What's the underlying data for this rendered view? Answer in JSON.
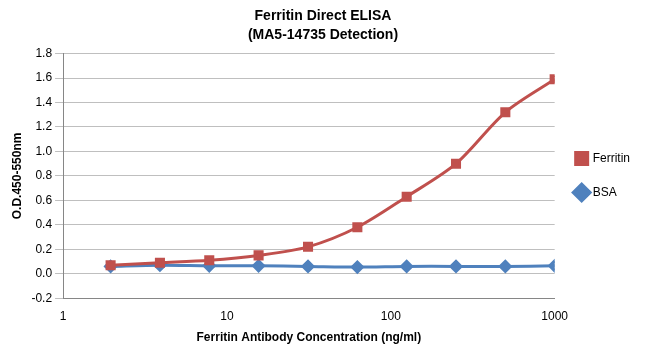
{
  "chart_data": {
    "type": "line",
    "title": "Ferritin Direct ELISA",
    "subtitle": "(MA5-14735 Detection)",
    "x_label": "Ferritin Antibody Concentration (ng/ml)",
    "y_label": "O.D.450-550nm",
    "x": [
      1.95,
      3.9,
      7.8,
      15.6,
      31.25,
      62.5,
      125,
      250,
      500,
      1000
    ],
    "series": [
      {
        "name": "Ferritin",
        "color": "#c0504d",
        "marker": "square",
        "line_style": "solid",
        "values": [
          0.07,
          0.09,
          0.11,
          0.15,
          0.22,
          0.38,
          0.63,
          0.9,
          1.32,
          1.59
        ]
      },
      {
        "name": "BSA",
        "color": "#4f81bd",
        "marker": "diamond",
        "line_style": "solid",
        "values": [
          0.06,
          0.07,
          0.065,
          0.065,
          0.06,
          0.055,
          0.06,
          0.06,
          0.06,
          0.065
        ]
      }
    ],
    "log": "x",
    "xlim": [
      1,
      1000
    ],
    "xticks": [
      1,
      10,
      100,
      1000
    ],
    "ylim": [
      -0.2,
      1.8
    ],
    "yticks": [
      -0.2,
      {
        "value": 0,
        "label": "0.0"
      },
      0.2,
      0.4,
      0.6,
      0.8,
      {
        "value": 1,
        "label": "1.0"
      },
      1.2,
      1.4,
      1.6,
      1.8
    ],
    "grid": "y",
    "legend": "right"
  }
}
